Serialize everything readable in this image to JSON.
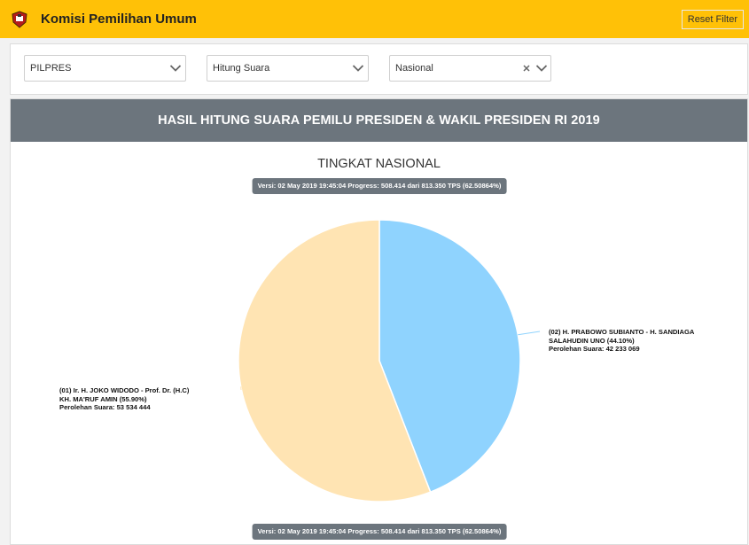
{
  "header": {
    "app_title": "Komisi Pemilihan Umum",
    "reset_label": "Reset Filter",
    "accent_color": "#ffc107",
    "logo_icon": "kpu-logo-icon"
  },
  "filters": [
    {
      "value": "PILPRES",
      "icon": "chevron-down-icon"
    },
    {
      "value": "Hitung Suara",
      "icon": "chevron-down-icon"
    },
    {
      "value": "Nasional",
      "icon": "chevron-down-icon",
      "clear_icon": "close-icon"
    }
  ],
  "card": {
    "header": "HASIL HITUNG SUARA PEMILU PRESIDEN & WAKIL PRESIDEN RI 2019",
    "subtitle": "TINGKAT NASIONAL",
    "version_badge": "Versi: 02 May 2019 19:45:04 Progress: 508.414 dari 813.350 TPS (62.50864%)"
  },
  "chart_data": {
    "type": "pie",
    "title": "TINGKAT NASIONAL",
    "series": [
      {
        "label_lines": [
          "(02) H. PRABOWO SUBIANTO - H. SANDIAGA",
          "SALAHUDIN UNO (44.10%)"
        ],
        "votes_text": "Perolehan Suara: 42 233 069",
        "percent": 44.1,
        "votes": 42233069,
        "color": "#8fd3fe"
      },
      {
        "label_lines": [
          "(01) Ir. H. JOKO WIDODO - Prof. Dr. (H.C)",
          "KH. MA'RUF AMIN (55.90%)"
        ],
        "votes_text": "Perolehan Suara: 53 534 444",
        "percent": 55.9,
        "votes": 53534444,
        "color": "#ffe4b3"
      }
    ]
  }
}
